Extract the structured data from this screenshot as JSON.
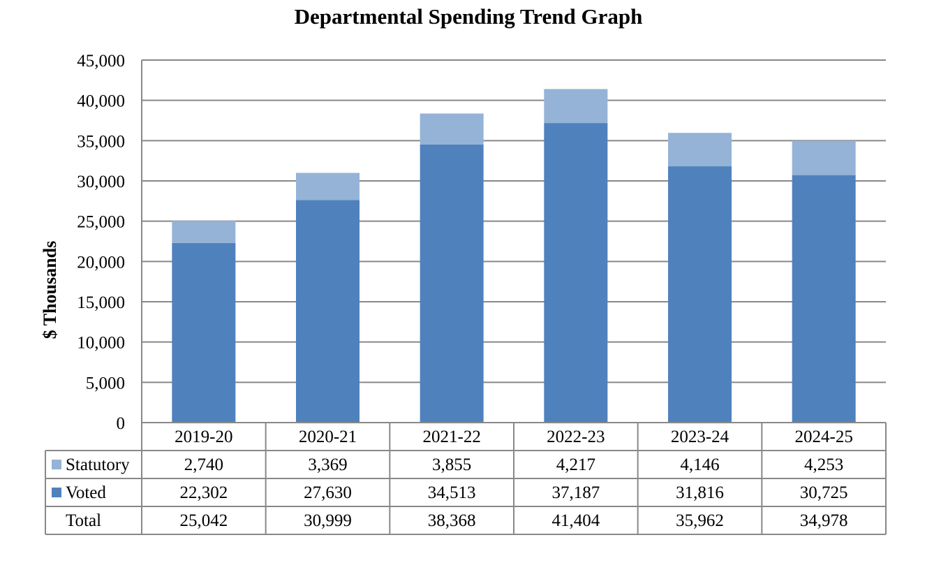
{
  "chart_data": {
    "type": "bar",
    "stacked": true,
    "title": "Departmental Spending Trend Graph",
    "xlabel": "",
    "ylabel": "$ Thousands",
    "ylim": [
      0,
      45000
    ],
    "yticks": [
      "0",
      "5,000",
      "10,000",
      "15,000",
      "20,000",
      "25,000",
      "30,000",
      "35,000",
      "40,000",
      "45,000"
    ],
    "ytick_values": [
      0,
      5000,
      10000,
      15000,
      20000,
      25000,
      30000,
      35000,
      40000,
      45000
    ],
    "grid": true,
    "legend": "data-table-left",
    "categories": [
      "2019-20",
      "2020-21",
      "2021-22",
      "2022-23",
      "2023-24",
      "2024-25"
    ],
    "series": [
      {
        "name": "Voted",
        "color": "#4f81bd",
        "values": [
          22302,
          27630,
          34513,
          37187,
          31816,
          30725
        ],
        "labels": [
          "22,302",
          "27,630",
          "34,513",
          "37,187",
          "31,816",
          "30,725"
        ]
      },
      {
        "name": "Statutory",
        "color": "#95b3d7",
        "values": [
          2740,
          3369,
          3855,
          4217,
          4146,
          4253
        ],
        "labels": [
          "2,740",
          "3,369",
          "3,855",
          "4,217",
          "4,146",
          "4,253"
        ]
      }
    ],
    "total": {
      "name": "Total",
      "values": [
        25042,
        30999,
        38368,
        41404,
        35962,
        34978
      ],
      "labels": [
        "25,042",
        "30,999",
        "38,368",
        "41,404",
        "35,962",
        "34,978"
      ]
    },
    "table_row_order": [
      "Statutory",
      "Voted",
      "Total"
    ],
    "colors": {
      "grid": "#888888",
      "axis": "#888888",
      "text": "#000000"
    }
  }
}
